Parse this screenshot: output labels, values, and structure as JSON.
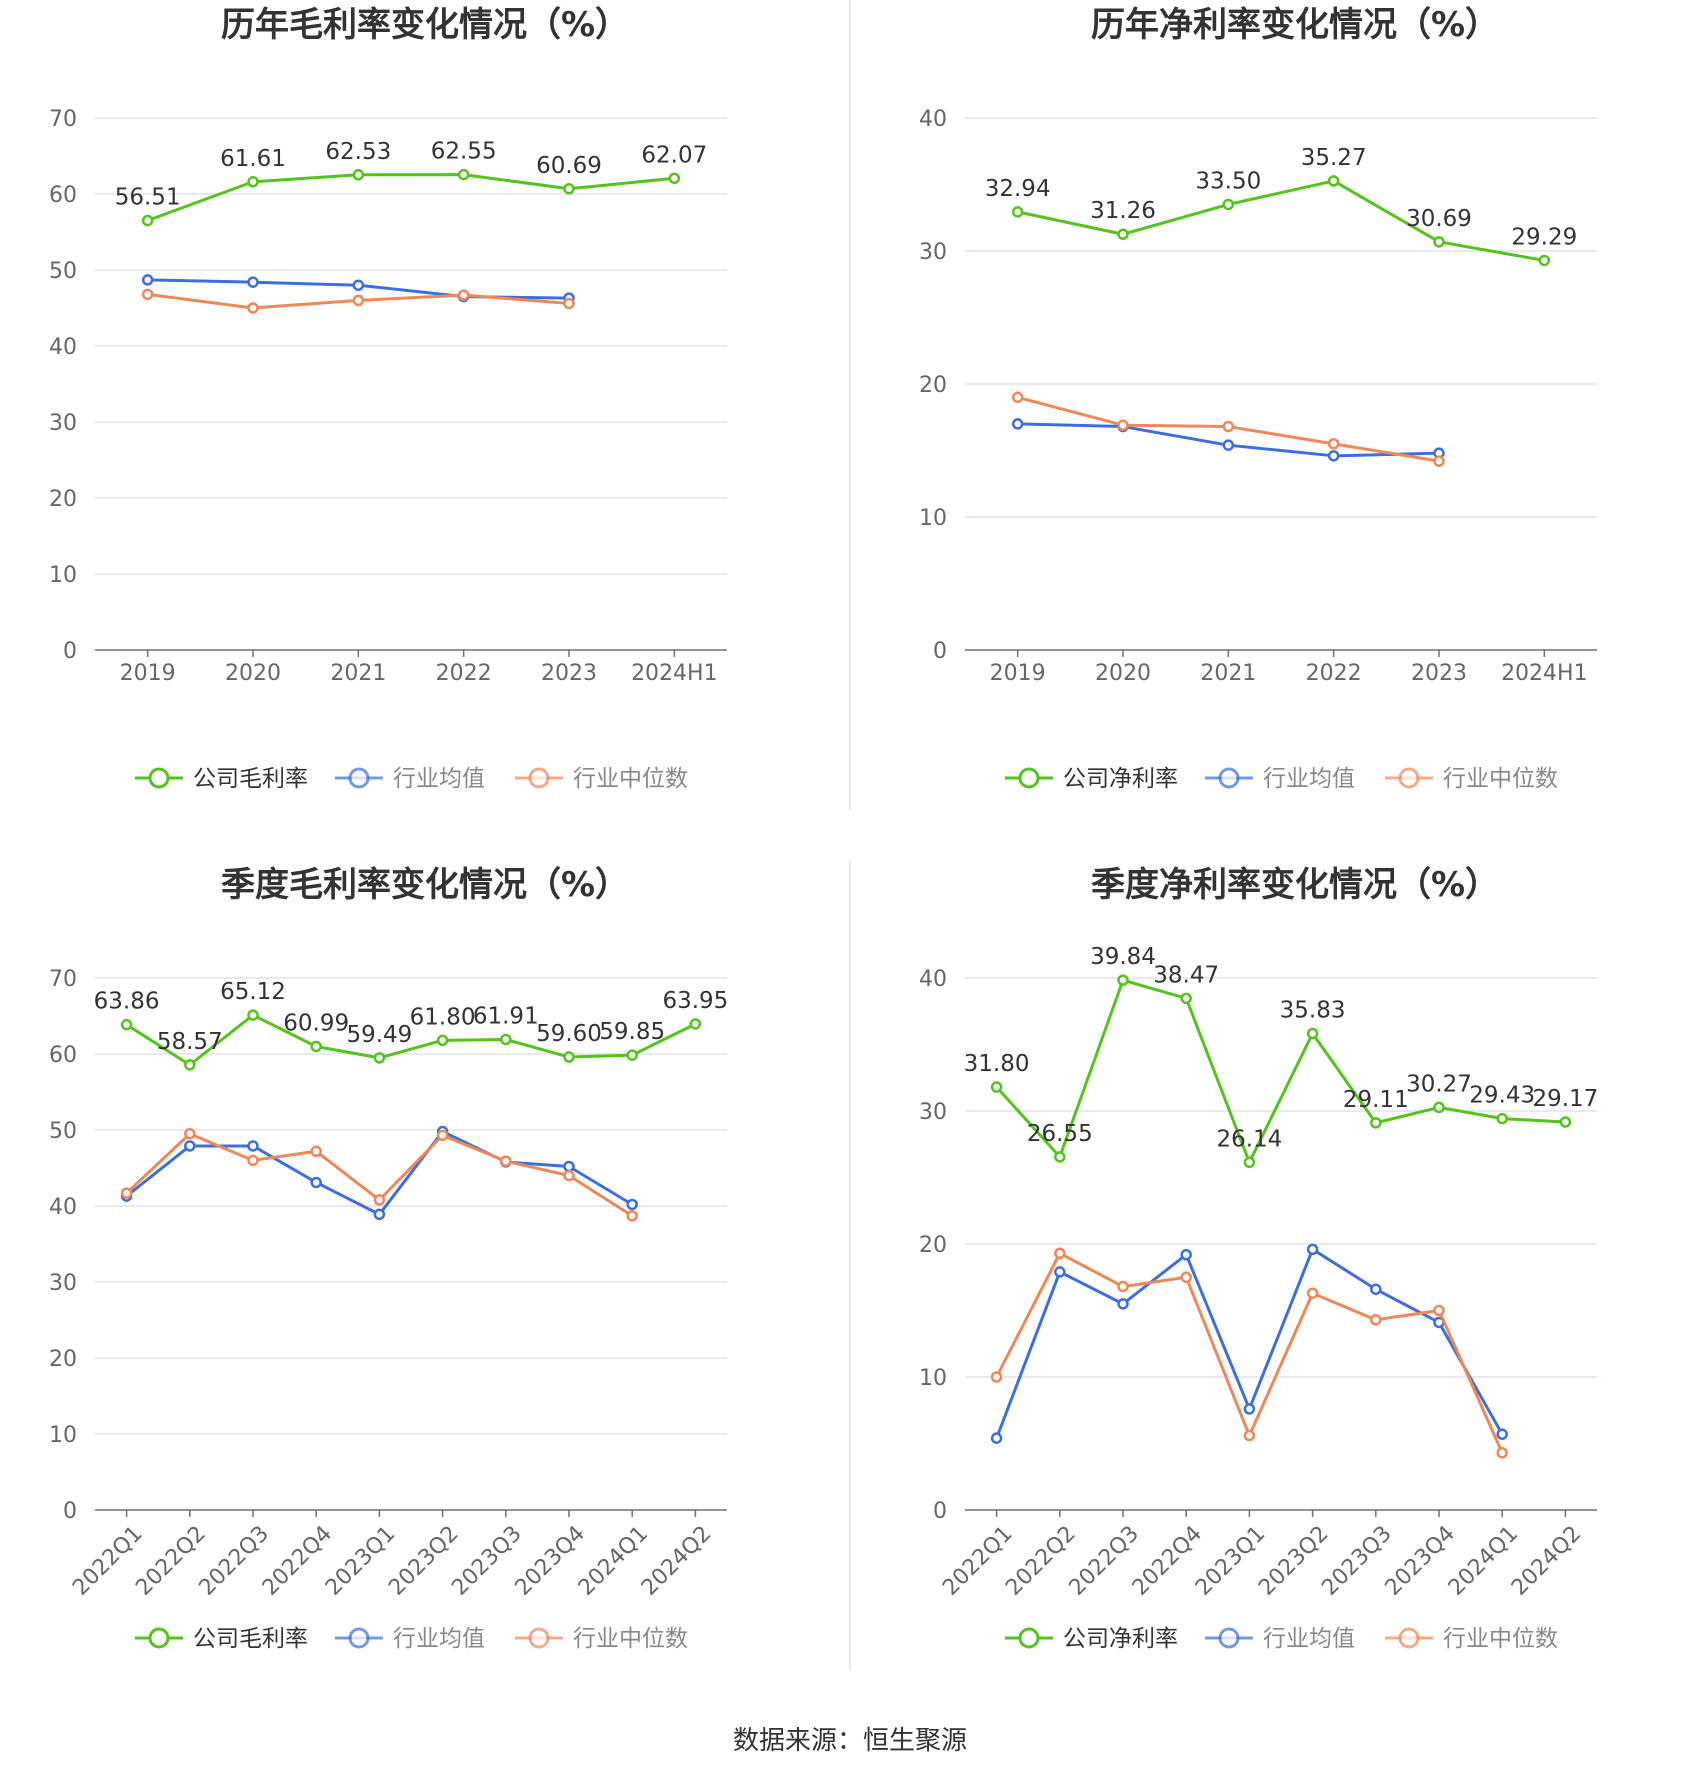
{
  "colors": {
    "company": "#52c41a",
    "avg": "#3b6fe0",
    "median": "#f08756",
    "grid": "#e0e3ee",
    "axis": "#666666",
    "label": "#333333"
  },
  "legend": {
    "avg": "行业均值",
    "median": "行业中位数"
  },
  "source": "数据来源：恒生聚源",
  "chart_data": [
    {
      "type": "line",
      "title": "历年毛利率变化情况（%）",
      "categories": [
        "2019",
        "2020",
        "2021",
        "2022",
        "2023",
        "2024H1"
      ],
      "ylim": [
        0,
        70
      ],
      "yticks": [
        0,
        10,
        20,
        30,
        40,
        50,
        60,
        70
      ],
      "series": [
        {
          "name": "公司毛利率",
          "key": "company",
          "values": [
            56.51,
            61.61,
            62.53,
            62.55,
            60.69,
            62.07
          ],
          "labels": [
            "56.51",
            "61.61",
            "62.53",
            "62.55",
            "60.69",
            "62.07"
          ]
        },
        {
          "name": "行业均值",
          "key": "avg",
          "values": [
            48.7,
            48.4,
            48.0,
            46.5,
            46.3,
            null
          ]
        },
        {
          "name": "行业中位数",
          "key": "median",
          "values": [
            46.8,
            45.0,
            46.0,
            46.7,
            45.6,
            null
          ]
        }
      ],
      "legend_position": "bottom",
      "grid": true
    },
    {
      "type": "line",
      "title": "历年净利率变化情况（%）",
      "categories": [
        "2019",
        "2020",
        "2021",
        "2022",
        "2023",
        "2024H1"
      ],
      "ylim": [
        0,
        40
      ],
      "yticks": [
        0,
        10,
        20,
        30,
        40
      ],
      "series": [
        {
          "name": "公司净利率",
          "key": "company",
          "values": [
            32.94,
            31.26,
            33.5,
            35.27,
            30.69,
            29.29
          ],
          "labels": [
            "32.94",
            "31.26",
            "33.50",
            "35.27",
            "30.69",
            "29.29"
          ]
        },
        {
          "name": "行业均值",
          "key": "avg",
          "values": [
            17.0,
            16.8,
            15.4,
            14.6,
            14.8,
            null
          ]
        },
        {
          "name": "行业中位数",
          "key": "median",
          "values": [
            19.0,
            16.9,
            16.8,
            15.5,
            14.2,
            null
          ]
        }
      ],
      "legend_position": "bottom",
      "grid": true
    },
    {
      "type": "line",
      "title": "季度毛利率变化情况（%）",
      "categories": [
        "2022Q1",
        "2022Q2",
        "2022Q3",
        "2022Q4",
        "2023Q1",
        "2023Q2",
        "2023Q3",
        "2023Q4",
        "2024Q1",
        "2024Q2"
      ],
      "ylim": [
        0,
        70
      ],
      "yticks": [
        0,
        10,
        20,
        30,
        40,
        50,
        60,
        70
      ],
      "series": [
        {
          "name": "公司毛利率",
          "key": "company",
          "values": [
            63.86,
            58.57,
            65.12,
            60.99,
            59.49,
            61.8,
            61.91,
            59.6,
            59.85,
            63.95
          ],
          "labels": [
            "63.86",
            "58.57",
            "65.12",
            "60.99",
            "59.49",
            "61.80",
            "61.91",
            "59.60",
            "59.85",
            "63.95"
          ]
        },
        {
          "name": "行业均值",
          "key": "avg",
          "values": [
            41.3,
            47.9,
            47.9,
            43.1,
            38.9,
            49.8,
            45.8,
            45.2,
            40.2,
            null
          ]
        },
        {
          "name": "行业中位数",
          "key": "median",
          "values": [
            41.7,
            49.5,
            46.0,
            47.2,
            40.8,
            49.3,
            45.9,
            44.0,
            38.7,
            null
          ]
        }
      ],
      "legend_position": "bottom",
      "grid": true
    },
    {
      "type": "line",
      "title": "季度净利率变化情况（%）",
      "categories": [
        "2022Q1",
        "2022Q2",
        "2022Q3",
        "2022Q4",
        "2023Q1",
        "2023Q2",
        "2023Q3",
        "2023Q4",
        "2024Q1",
        "2024Q2"
      ],
      "ylim": [
        0,
        40
      ],
      "yticks": [
        0,
        10,
        20,
        30,
        40
      ],
      "series": [
        {
          "name": "公司净利率",
          "key": "company",
          "values": [
            31.8,
            26.55,
            39.84,
            38.47,
            26.14,
            35.83,
            29.11,
            30.27,
            29.43,
            29.17
          ],
          "labels": [
            "31.80",
            "26.55",
            "39.84",
            "38.47",
            "26.14",
            "35.83",
            "29.11",
            "30.27",
            "29.43",
            "29.17"
          ]
        },
        {
          "name": "行业均值",
          "key": "avg",
          "values": [
            5.4,
            17.9,
            15.5,
            19.2,
            7.6,
            19.6,
            16.6,
            14.1,
            5.7,
            null
          ]
        },
        {
          "name": "行业中位数",
          "key": "median",
          "values": [
            10.0,
            19.3,
            16.8,
            17.5,
            5.6,
            16.3,
            14.3,
            15.0,
            4.3,
            null
          ]
        }
      ],
      "legend_position": "bottom",
      "grid": true
    }
  ]
}
